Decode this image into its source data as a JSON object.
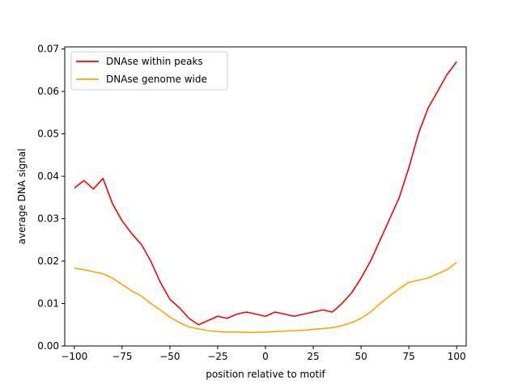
{
  "chart_data": {
    "type": "line",
    "title": "",
    "xlabel": "position relative to motif",
    "ylabel": "average DNA signal",
    "xlim": [
      -105,
      105
    ],
    "ylim": [
      0.0,
      0.0705
    ],
    "xticks": [
      -100,
      -75,
      -50,
      -25,
      0,
      25,
      50,
      75,
      100
    ],
    "xtick_labels": [
      "−100",
      "−75",
      "−50",
      "−25",
      "0",
      "25",
      "50",
      "75",
      "100"
    ],
    "yticks": [
      0.0,
      0.01,
      0.02,
      0.03,
      0.04,
      0.05,
      0.06,
      0.07
    ],
    "ytick_labels": [
      "0.00",
      "0.01",
      "0.02",
      "0.03",
      "0.04",
      "0.05",
      "0.06",
      "0.07"
    ],
    "grid": false,
    "legend_position": "top-left",
    "x": [
      -100,
      -95,
      -90,
      -85,
      -80,
      -75,
      -70,
      -65,
      -60,
      -55,
      -50,
      -45,
      -40,
      -35,
      -30,
      -25,
      -20,
      -15,
      -10,
      -5,
      0,
      5,
      10,
      15,
      20,
      25,
      30,
      35,
      40,
      45,
      50,
      55,
      60,
      65,
      70,
      75,
      80,
      85,
      90,
      95,
      100
    ],
    "series": [
      {
        "name": "DNAse within peaks",
        "color": "#ff0000",
        "values": [
          0.0372,
          0.039,
          0.037,
          0.0395,
          0.0335,
          0.0295,
          0.0265,
          0.024,
          0.02,
          0.015,
          0.011,
          0.009,
          0.0065,
          0.005,
          0.006,
          0.007,
          0.0065,
          0.0075,
          0.008,
          0.0075,
          0.007,
          0.008,
          0.0075,
          0.007,
          0.0075,
          0.008,
          0.0085,
          0.008,
          0.01,
          0.0125,
          0.016,
          0.02,
          0.025,
          0.03,
          0.035,
          0.042,
          0.05,
          0.056,
          0.06,
          0.064,
          0.067
        ]
      },
      {
        "name": "DNAse genome wide",
        "color": "#ffa500",
        "values": [
          0.0183,
          0.018,
          0.0175,
          0.017,
          0.016,
          0.0145,
          0.013,
          0.0118,
          0.01,
          0.0085,
          0.0068,
          0.0055,
          0.0045,
          0.004,
          0.0036,
          0.0034,
          0.0033,
          0.0033,
          0.0032,
          0.0032,
          0.0033,
          0.0034,
          0.0035,
          0.0036,
          0.0037,
          0.0039,
          0.0041,
          0.0043,
          0.0048,
          0.0055,
          0.0065,
          0.008,
          0.01,
          0.0118,
          0.0135,
          0.015,
          0.0155,
          0.016,
          0.017,
          0.018,
          0.0197
        ]
      }
    ]
  }
}
